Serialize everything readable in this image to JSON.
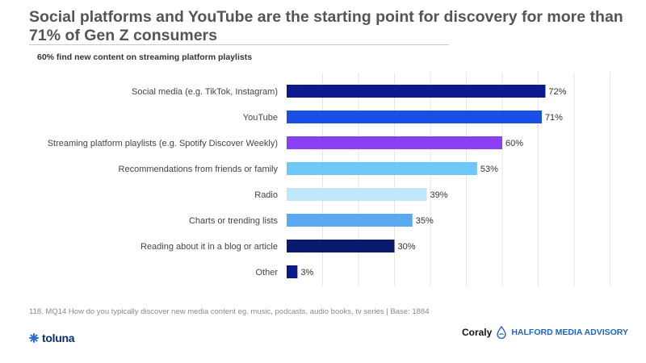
{
  "title": "Social platforms and YouTube are the starting point for discovery for more than 71% of Gen Z consumers",
  "subtitle": "60% find new content on streaming platform playlists",
  "footnote": "118. MQ14 How do you typically discover new media content eg. music, podcasts, audio books, tv series  | Base: 1884",
  "logos": {
    "left": "toluna",
    "right_primary": "Coraly",
    "right_secondary": "HALFORD MEDIA ADVISORY"
  },
  "colors": {
    "title": "#555555",
    "accent_navy": "#0a1a8c"
  },
  "chart_data": {
    "type": "bar",
    "orientation": "horizontal",
    "categories": [
      "Social media (e.g. TikTok, Instagram)",
      "YouTube",
      "Streaming platform playlists (e.g. Spotify Discover Weekly)",
      "Recommendations from friends or family",
      "Radio",
      "Charts or trending lists",
      "Reading about it in a blog or article",
      "Other"
    ],
    "values": [
      72,
      71,
      60,
      53,
      39,
      35,
      30,
      3
    ],
    "value_labels": [
      "72%",
      "71%",
      "60%",
      "53%",
      "39%",
      "35%",
      "30%",
      "3%"
    ],
    "colors": [
      "#0a1a8c",
      "#1a4fe6",
      "#8a3ff0",
      "#6ec8f7",
      "#bfe6fb",
      "#5aa8f0",
      "#0a1a6e",
      "#0a1a8c"
    ],
    "unit": "%",
    "xlim": [
      0,
      100
    ],
    "grid": true,
    "legend": "none"
  }
}
